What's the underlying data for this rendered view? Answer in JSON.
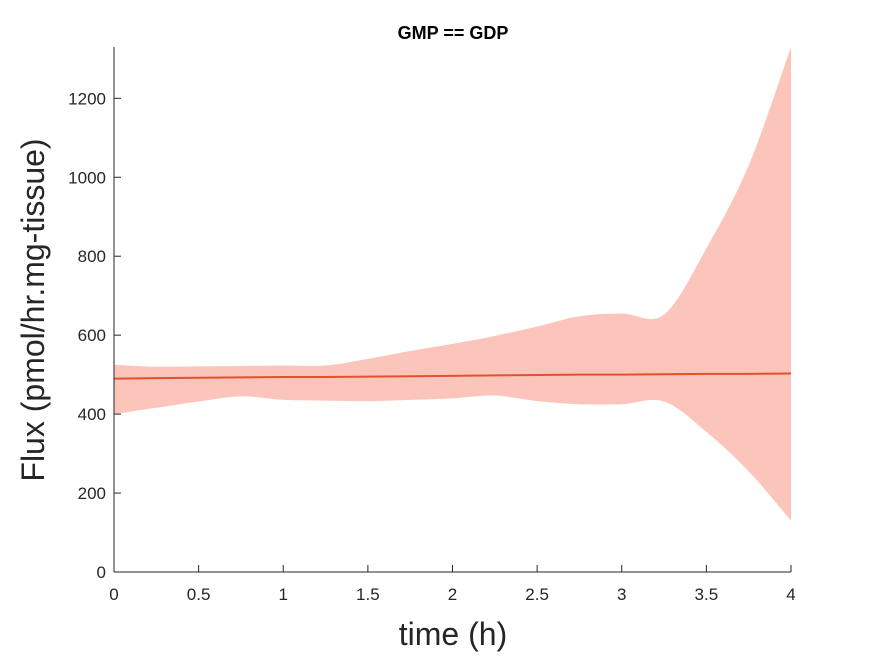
{
  "chart_data": {
    "type": "line",
    "title": "GMP == GDP",
    "xlabel": "time (h)",
    "ylabel": "Flux (pmol/hr.mg-tissue)",
    "xlim": [
      0,
      4
    ],
    "ylim": [
      0,
      1330
    ],
    "xticks": [
      0,
      0.5,
      1,
      1.5,
      2,
      2.5,
      3,
      3.5,
      4
    ],
    "xtick_labels": [
      "0",
      "0.5",
      "1",
      "1.5",
      "2",
      "2.5",
      "3",
      "3.5",
      "4"
    ],
    "yticks": [
      0,
      200,
      400,
      600,
      800,
      1000,
      1200
    ],
    "ytick_labels": [
      "0",
      "200",
      "400",
      "600",
      "800",
      "1000",
      "1200"
    ],
    "grid": false,
    "legend": "none",
    "series": [
      {
        "x": [
          0,
          0.25,
          0.5,
          0.75,
          1,
          1.25,
          1.5,
          1.75,
          2,
          2.25,
          2.5,
          2.75,
          3,
          3.25,
          3.5,
          3.75,
          4
        ],
        "values": [
          490,
          491,
          492,
          493,
          494,
          494,
          495,
          496,
          497,
          498,
          499,
          500,
          500,
          501,
          502,
          502,
          503
        ],
        "upper": [
          525,
          520,
          521,
          522,
          523,
          523,
          540,
          560,
          578,
          598,
          622,
          648,
          655,
          652,
          820,
          1030,
          1330
        ],
        "lower": [
          400,
          416,
          432,
          445,
          436,
          434,
          433,
          436,
          440,
          447,
          433,
          425,
          425,
          432,
          355,
          255,
          130
        ]
      }
    ],
    "colors": {
      "line": "#e2522e",
      "band": "#fcc5bb",
      "axis": "#262626"
    }
  }
}
